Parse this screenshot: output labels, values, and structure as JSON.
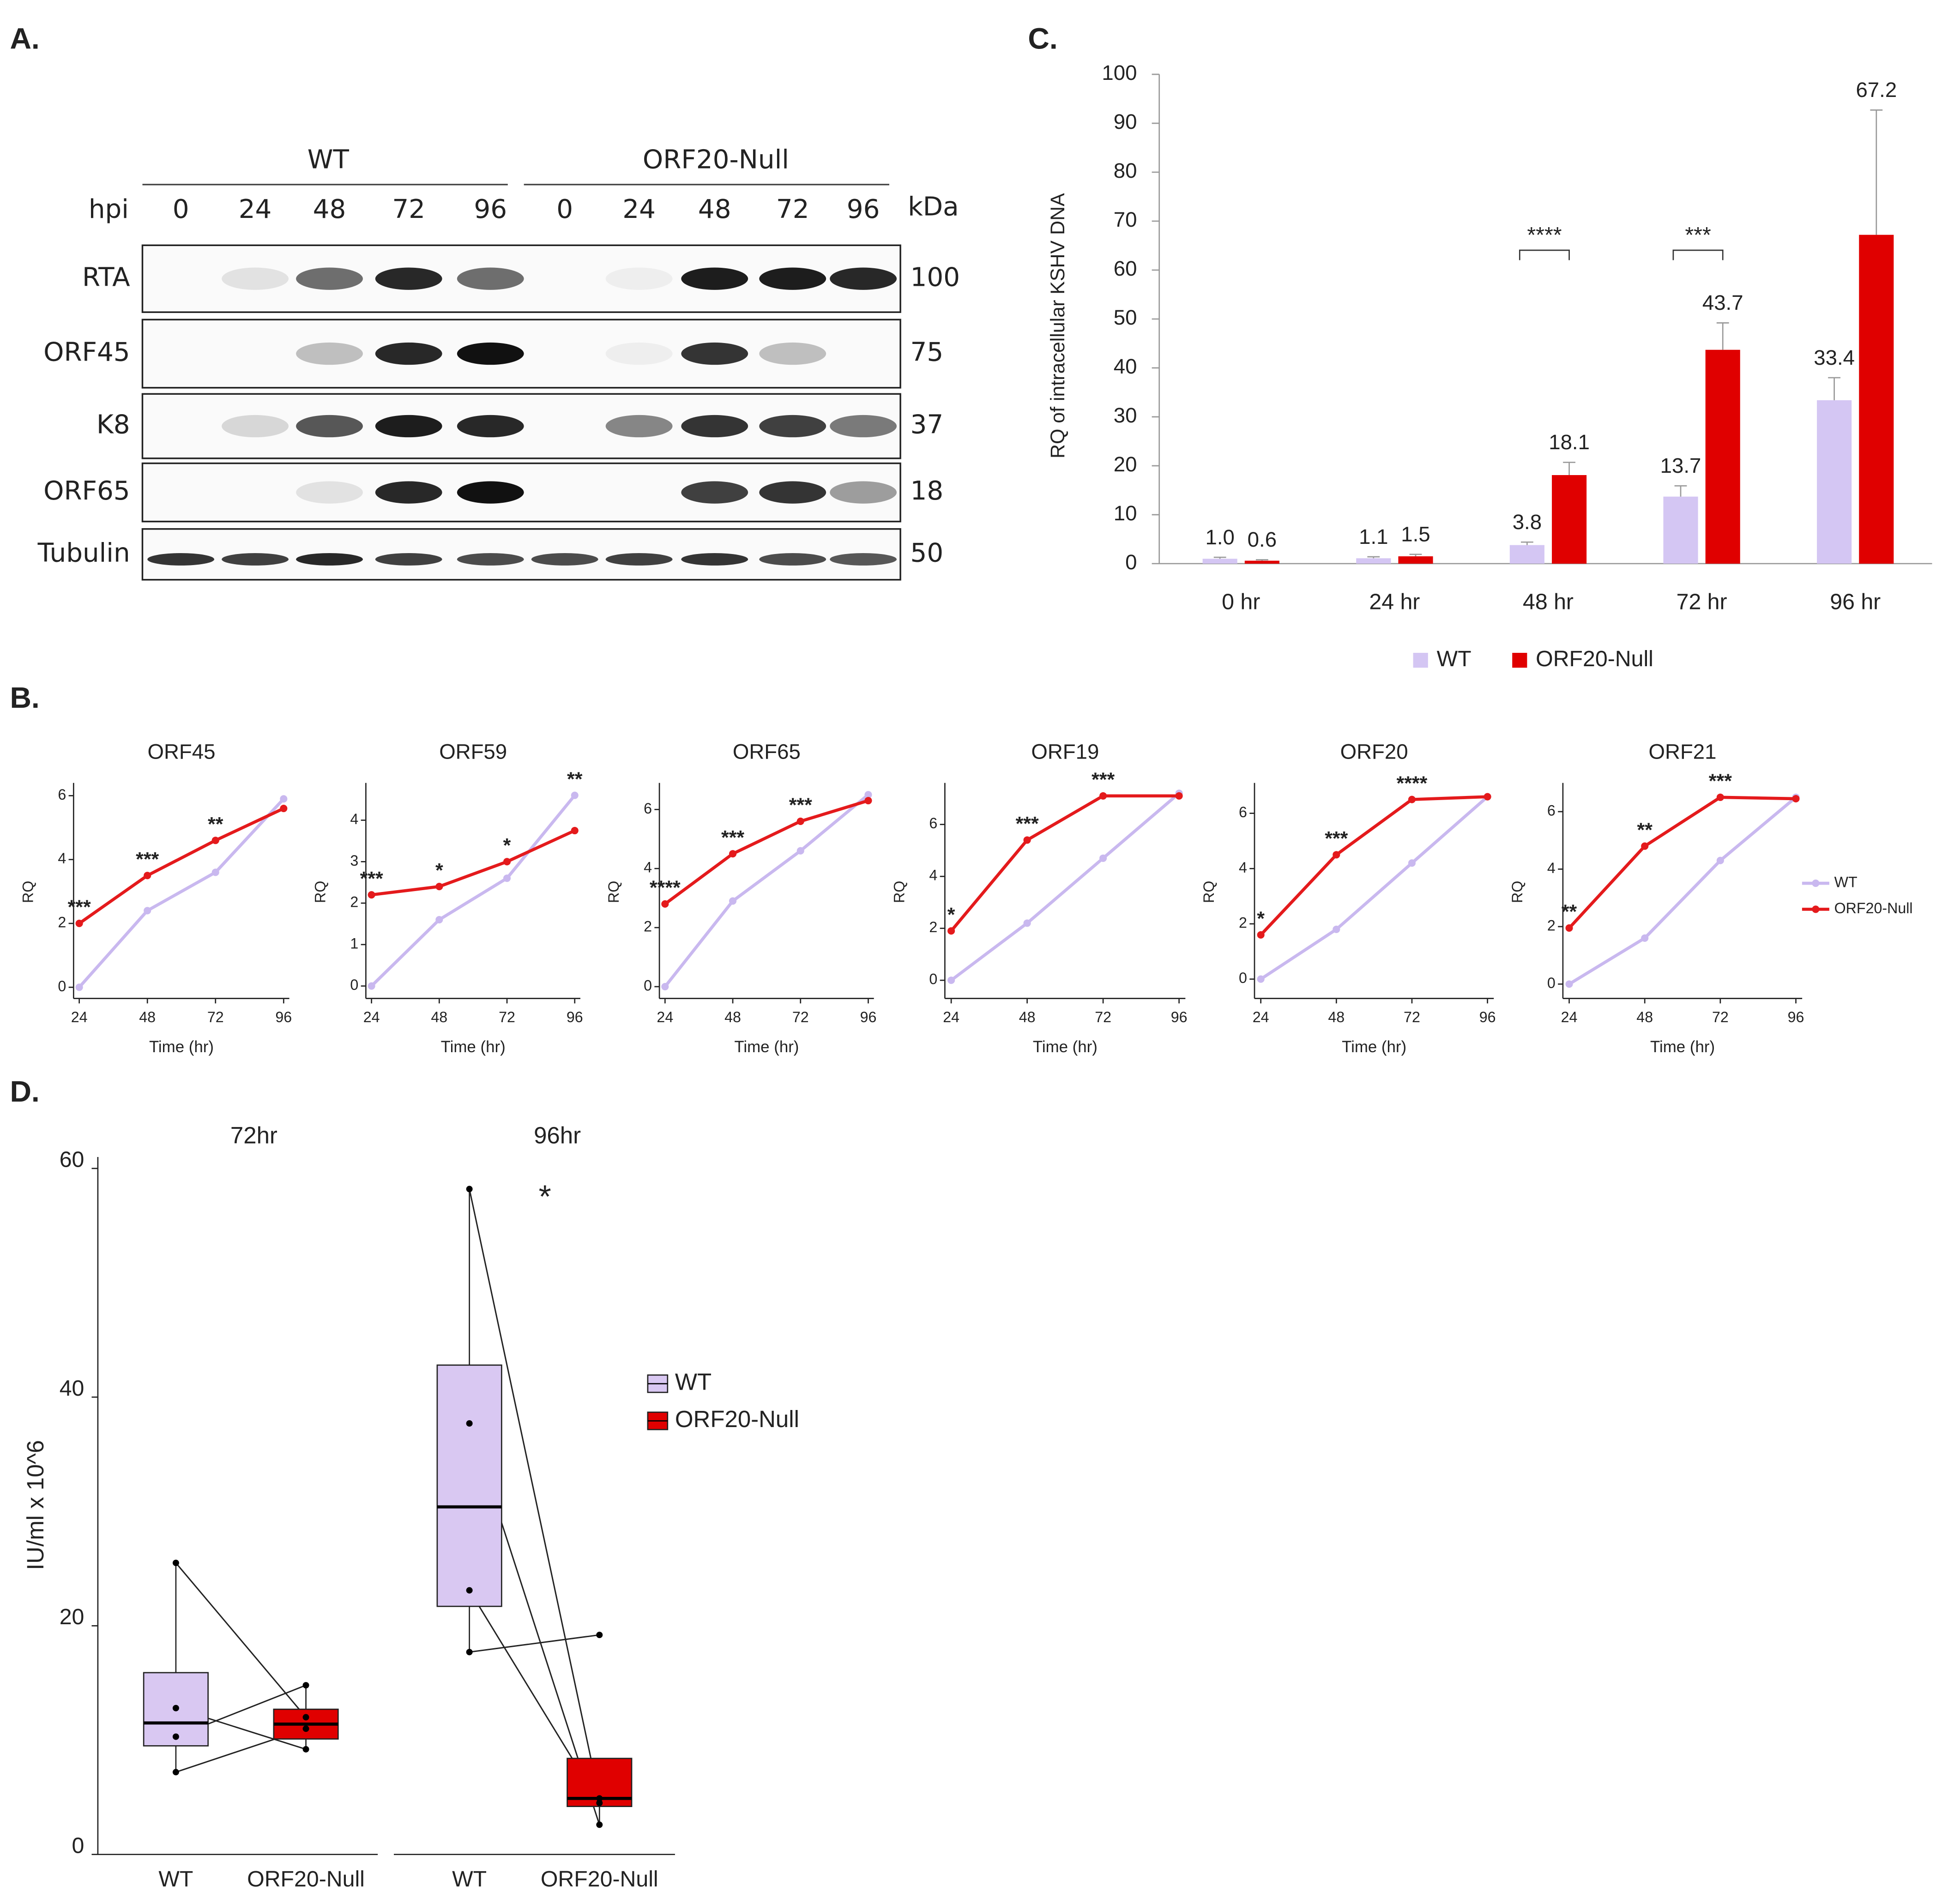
{
  "panel_labels": [
    "A.",
    "B.",
    "C.",
    "D."
  ],
  "blot": {
    "row_header": "hpi",
    "unit": "kDa",
    "groups": [
      {
        "name": "WT",
        "timepoints": [
          "0",
          "24",
          "48",
          "72",
          "96"
        ]
      },
      {
        "name": "ORF20-Null",
        "timepoints": [
          "0",
          "24",
          "48",
          "72",
          "96"
        ]
      }
    ],
    "proteins": [
      {
        "name": "RTA",
        "kda": "100"
      },
      {
        "name": "ORF45",
        "kda": "75"
      },
      {
        "name": "K8",
        "kda": "37"
      },
      {
        "name": "ORF65",
        "kda": "18"
      },
      {
        "name": "Tubulin",
        "kda": "50"
      }
    ]
  },
  "chart_data": [
    {
      "type": "bar",
      "ylabel": "RQ of intracellular KSHV DNA",
      "categories": [
        "0 hr",
        "24 hr",
        "48 hr",
        "72 hr",
        "96 hr"
      ],
      "series": [
        {
          "name": "WT",
          "color": "#d4c6f3",
          "values": [
            1.0,
            1.1,
            3.8,
            13.7,
            33.4
          ],
          "value_labels": [
            "1.0",
            "1.1",
            "3.8",
            "13.7",
            "33.4"
          ],
          "errors": [
            0.3,
            0.3,
            0.6,
            2.2,
            4.6
          ]
        },
        {
          "name": "ORF20-Null",
          "color": "#e00000",
          "values": [
            0.6,
            1.5,
            18.1,
            43.7,
            67.2
          ],
          "value_labels": [
            "0.6",
            "1.5",
            "18.1",
            "43.7",
            "67.2"
          ],
          "errors": [
            0.2,
            0.4,
            2.6,
            5.5,
            25.5
          ]
        }
      ],
      "ylim": [
        0,
        100
      ],
      "yticks": [
        0,
        10,
        20,
        30,
        40,
        50,
        60,
        70,
        80,
        90,
        100
      ],
      "legend": "bottom",
      "annotations": [
        {
          "text": "****",
          "category": 2
        },
        {
          "text": "***",
          "category": 3
        }
      ]
    },
    {
      "type": "line",
      "title": "ORF45",
      "xlabel": "Time (hr)",
      "ylabel": "RQ",
      "x": [
        24,
        48,
        72,
        96
      ],
      "xlim": [
        22,
        98
      ],
      "xticks": [
        24,
        48,
        72,
        96
      ],
      "ylim": [
        -0.35,
        6.4
      ],
      "yticks": [
        0,
        2,
        4,
        6
      ],
      "series": [
        {
          "name": "WT",
          "color": "#c9b8ef",
          "values": [
            0,
            2.4,
            3.6,
            5.9
          ]
        },
        {
          "name": "ORF20-Null",
          "color": "#e41a1c",
          "values": [
            2.0,
            3.5,
            4.6,
            5.6
          ]
        }
      ],
      "annotations": [
        "***",
        "***",
        "**",
        null
      ]
    },
    {
      "type": "line",
      "title": "ORF59",
      "xlabel": "Time (hr)",
      "ylabel": "RQ",
      "x": [
        24,
        48,
        72,
        96
      ],
      "xlim": [
        22,
        98
      ],
      "xticks": [
        24,
        48,
        72,
        96
      ],
      "ylim": [
        -0.3,
        4.9
      ],
      "yticks": [
        0,
        1,
        2,
        3,
        4
      ],
      "series": [
        {
          "name": "WT",
          "color": "#c9b8ef",
          "values": [
            0,
            1.6,
            2.6,
            4.6
          ]
        },
        {
          "name": "ORF20-Null",
          "color": "#e41a1c",
          "values": [
            2.2,
            2.4,
            3.0,
            3.75
          ]
        }
      ],
      "annotations": [
        "***",
        "*",
        "*",
        "**"
      ]
    },
    {
      "type": "line",
      "title": "ORF65",
      "xlabel": "Time (hr)",
      "ylabel": "RQ",
      "x": [
        24,
        48,
        72,
        96
      ],
      "xlim": [
        22,
        98
      ],
      "xticks": [
        24,
        48,
        72,
        96
      ],
      "ylim": [
        -0.4,
        6.9
      ],
      "yticks": [
        0,
        2,
        4,
        6
      ],
      "series": [
        {
          "name": "WT",
          "color": "#c9b8ef",
          "values": [
            0,
            2.9,
            4.6,
            6.5
          ]
        },
        {
          "name": "ORF20-Null",
          "color": "#e41a1c",
          "values": [
            2.8,
            4.5,
            5.6,
            6.3
          ]
        }
      ],
      "annotations": [
        "****",
        "***",
        "***",
        null
      ]
    },
    {
      "type": "line",
      "title": "ORF19",
      "xlabel": "Time (hr)",
      "ylabel": "RQ",
      "x": [
        24,
        48,
        72,
        96
      ],
      "xlim": [
        22,
        98
      ],
      "xticks": [
        24,
        48,
        72,
        96
      ],
      "ylim": [
        -0.7,
        7.6
      ],
      "yticks": [
        0,
        2,
        4,
        6
      ],
      "series": [
        {
          "name": "WT",
          "color": "#c9b8ef",
          "values": [
            0,
            2.2,
            4.7,
            7.2
          ]
        },
        {
          "name": "ORF20-Null",
          "color": "#e41a1c",
          "values": [
            1.9,
            5.4,
            7.1,
            7.1
          ]
        }
      ],
      "annotations": [
        "*",
        "***",
        "***",
        null
      ]
    },
    {
      "type": "line",
      "title": "ORF20",
      "xlabel": "Time (hr)",
      "ylabel": "RQ",
      "x": [
        24,
        48,
        72,
        96
      ],
      "xlim": [
        22,
        98
      ],
      "xticks": [
        24,
        48,
        72,
        96
      ],
      "ylim": [
        -0.7,
        7.1
      ],
      "yticks": [
        0,
        2,
        4,
        6
      ],
      "series": [
        {
          "name": "WT",
          "color": "#c9b8ef",
          "values": [
            0,
            1.8,
            4.2,
            6.6
          ]
        },
        {
          "name": "ORF20-Null",
          "color": "#e41a1c",
          "values": [
            1.6,
            4.5,
            6.5,
            6.6
          ]
        }
      ],
      "annotations": [
        "*",
        "***",
        "****",
        null
      ]
    },
    {
      "type": "line",
      "title": "ORF21",
      "xlabel": "Time (hr)",
      "ylabel": "RQ",
      "x": [
        24,
        48,
        72,
        96
      ],
      "xlim": [
        22,
        98
      ],
      "xticks": [
        24,
        48,
        72,
        96
      ],
      "ylim": [
        -0.5,
        7.0
      ],
      "yticks": [
        0,
        2,
        4,
        6
      ],
      "legend": "right",
      "series": [
        {
          "name": "WT",
          "color": "#c9b8ef",
          "values": [
            0,
            1.6,
            4.3,
            6.5
          ]
        },
        {
          "name": "ORF20-Null",
          "color": "#e41a1c",
          "values": [
            1.95,
            4.8,
            6.5,
            6.45
          ]
        }
      ],
      "annotations": [
        "**",
        "**",
        "***",
        null
      ]
    },
    {
      "type": "box",
      "ylabel": "IU/ml x 10^6",
      "ylim": [
        0,
        61
      ],
      "yticks": [
        0,
        20,
        40,
        60
      ],
      "categories": [
        "WT",
        "ORF20-Null"
      ],
      "legend": "right",
      "series": [
        {
          "name": "WT",
          "color": "#d9c8f2"
        },
        {
          "name": "ORF20-Null",
          "color": "#e00000"
        }
      ],
      "facets": [
        {
          "title": "72hr",
          "annotation": null,
          "boxes": [
            {
              "q1": 9.5,
              "median": 11.5,
              "q3": 15.9,
              "whisker_low": 7.2,
              "whisker_high": 25.5,
              "points": [
                25.5,
                12.8,
                10.3,
                7.2
              ]
            },
            {
              "q1": 10.1,
              "median": 11.4,
              "q3": 12.7,
              "whisker_low": 9.2,
              "whisker_high": 14.8,
              "points": [
                12.0,
                9.2,
                14.8,
                11.0
              ]
            }
          ]
        },
        {
          "title": "96hr",
          "annotation": "*",
          "boxes": [
            {
              "q1": 21.7,
              "median": 30.4,
              "q3": 42.8,
              "whisker_low": 17.7,
              "whisker_high": 58.2,
              "points": [
                58.2,
                37.7,
                23.1,
                17.7
              ]
            },
            {
              "q1": 4.2,
              "median": 4.9,
              "q3": 8.4,
              "whisker_low": 2.6,
              "whisker_high": 8.4,
              "points": [
                4.9,
                2.6,
                4.5,
                19.2
              ]
            }
          ]
        }
      ]
    }
  ]
}
